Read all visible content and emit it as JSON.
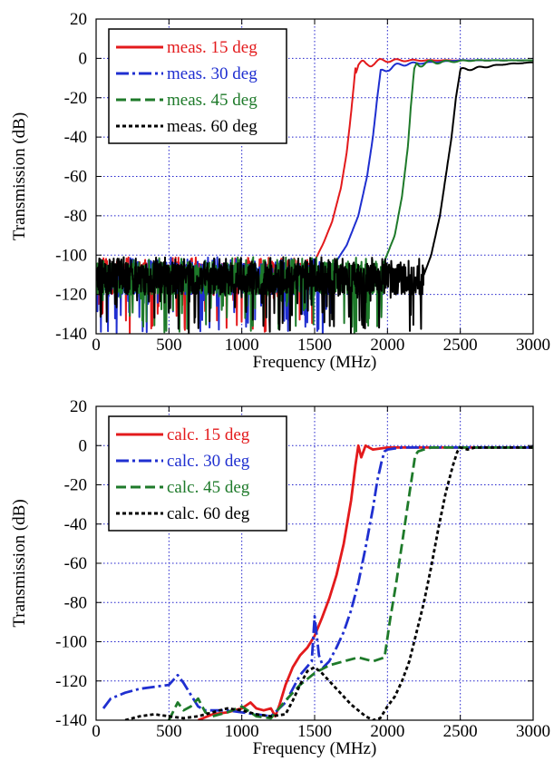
{
  "chart_data": [
    {
      "type": "line",
      "title": "",
      "xlabel": "Frequency (MHz)",
      "ylabel": "Transmission (dB)",
      "xlim": [
        0,
        3000
      ],
      "ylim": [
        -140,
        20
      ],
      "xticks": [
        "0",
        "500",
        "1000",
        "1500",
        "2000",
        "2500",
        "3000"
      ],
      "yticks": [
        "20",
        "0",
        "-20",
        "-40",
        "-60",
        "-80",
        "-100",
        "-120",
        "-140"
      ],
      "grid": true,
      "legend_position": "top-left",
      "series": [
        {
          "name": "meas. 15 deg",
          "color": "#e31a1c",
          "dash": "solid",
          "cutoff": 1780,
          "noise_end": 1500,
          "oscillation": 3,
          "x": [
            0,
            1500,
            1560,
            1620,
            1680,
            1720,
            1750,
            1780,
            1800,
            1850,
            1900,
            2000,
            2500,
            3000
          ],
          "y": [
            -112,
            -103,
            -94,
            -83,
            -66,
            -48,
            -28,
            -5,
            -2,
            -4,
            -2,
            -1,
            -1,
            -1
          ]
        },
        {
          "name": "meas. 30 deg",
          "color": "#1f2fd0",
          "dash": "dashdot",
          "cutoff": 1950,
          "noise_end": 1650,
          "oscillation": 2,
          "x": [
            0,
            1650,
            1720,
            1800,
            1860,
            1900,
            1930,
            1950,
            2000,
            2100,
            2500,
            3000
          ],
          "y": [
            -112,
            -103,
            -95,
            -80,
            -60,
            -40,
            -20,
            -8,
            -5,
            -3,
            -1,
            -1
          ]
        },
        {
          "name": "meas. 45 deg",
          "color": "#1e7a2a",
          "dash": "dashed",
          "cutoff": 2180,
          "noise_end": 1980,
          "oscillation": 2,
          "x": [
            0,
            1980,
            2050,
            2100,
            2140,
            2160,
            2180,
            2200,
            2300,
            2600,
            3000
          ],
          "y": [
            -112,
            -103,
            -90,
            -70,
            -45,
            -25,
            -8,
            -3,
            -2,
            -1,
            -1
          ]
        },
        {
          "name": "meas. 60 deg",
          "color": "#000000",
          "dash": "dotted",
          "cutoff": 2500,
          "noise_end": 2250,
          "oscillation": 1,
          "x": [
            0,
            2250,
            2300,
            2360,
            2400,
            2440,
            2470,
            2500,
            2600,
            2800,
            3000
          ],
          "y": [
            -112,
            -110,
            -100,
            -80,
            -60,
            -40,
            -20,
            -6,
            -5,
            -3,
            -2
          ]
        }
      ]
    },
    {
      "type": "line",
      "title": "",
      "xlabel": "Frequency (MHz)",
      "ylabel": "Transmission (dB)",
      "xlim": [
        0,
        3000
      ],
      "ylim": [
        -140,
        20
      ],
      "xticks": [
        "0",
        "500",
        "1000",
        "1500",
        "2000",
        "2500",
        "3000"
      ],
      "yticks": [
        "20",
        "0",
        "-20",
        "-40",
        "-60",
        "-80",
        "-100",
        "-120",
        "-140"
      ],
      "grid": true,
      "legend_position": "top-left",
      "series": [
        {
          "name": "calc. 15 deg",
          "color": "#e31a1c",
          "dash": "solid",
          "x": [
            700,
            800,
            900,
            1000,
            1060,
            1100,
            1150,
            1200,
            1230,
            1260,
            1300,
            1350,
            1400,
            1450,
            1500,
            1550,
            1600,
            1650,
            1700,
            1750,
            1780,
            1800,
            1820,
            1850,
            1900,
            2000,
            2500,
            3000
          ],
          "y": [
            -140,
            -137,
            -136,
            -134,
            -131,
            -134,
            -135,
            -134,
            -138,
            -132,
            -122,
            -113,
            -107,
            -103,
            -97,
            -88,
            -78,
            -66,
            -50,
            -28,
            -10,
            0,
            -6,
            0,
            -2,
            -1,
            -1,
            -1
          ]
        },
        {
          "name": "calc. 30 deg",
          "color": "#1f2fd0",
          "dash": "dashdot",
          "x": [
            50,
            100,
            200,
            300,
            400,
            500,
            560,
            600,
            650,
            700,
            750,
            800,
            900,
            1000,
            1100,
            1200,
            1300,
            1400,
            1480,
            1500,
            1530,
            1560,
            1600,
            1650,
            1700,
            1750,
            1800,
            1850,
            1900,
            1930,
            1960,
            1980,
            2000,
            2100,
            2500,
            3000
          ],
          "y": [
            -134,
            -129,
            -126,
            -124,
            -123,
            -122,
            -117,
            -121,
            -127,
            -133,
            -135,
            -135,
            -135,
            -136,
            -137,
            -138,
            -131,
            -117,
            -110,
            -87,
            -107,
            -113,
            -110,
            -103,
            -95,
            -84,
            -70,
            -52,
            -32,
            -18,
            -8,
            -3,
            -2,
            -1,
            -1,
            -1
          ]
        },
        {
          "name": "calc. 45 deg",
          "color": "#1e7a2a",
          "dash": "dashed",
          "x": [
            500,
            560,
            600,
            650,
            700,
            750,
            800,
            900,
            1000,
            1100,
            1200,
            1300,
            1400,
            1500,
            1600,
            1700,
            1800,
            1900,
            1980,
            2020,
            2060,
            2100,
            2150,
            2190,
            2210,
            2250,
            2300,
            2500,
            3000
          ],
          "y": [
            -140,
            -131,
            -135,
            -133,
            -129,
            -136,
            -138,
            -136,
            -133,
            -138,
            -139,
            -130,
            -122,
            -116,
            -112,
            -110,
            -108,
            -110,
            -108,
            -88,
            -70,
            -50,
            -25,
            -5,
            -3,
            -2,
            -1,
            -1,
            -1
          ]
        },
        {
          "name": "calc. 60 deg",
          "color": "#000000",
          "dash": "dotted",
          "x": [
            200,
            300,
            400,
            500,
            600,
            700,
            800,
            900,
            1000,
            1100,
            1200,
            1300,
            1350,
            1400,
            1450,
            1500,
            1550,
            1600,
            1650,
            1700,
            1750,
            1800,
            1850,
            1900,
            1950,
            2000,
            2050,
            2100,
            2150,
            2200,
            2250,
            2300,
            2350,
            2400,
            2450,
            2480,
            2500,
            2550,
            2600,
            2800,
            3000
          ],
          "y": [
            -140,
            -138,
            -137,
            -138,
            -139,
            -138,
            -136,
            -134,
            -135,
            -137,
            -138,
            -137,
            -130,
            -122,
            -115,
            -113,
            -116,
            -120,
            -124,
            -128,
            -132,
            -135,
            -138,
            -140,
            -139,
            -133,
            -128,
            -120,
            -110,
            -95,
            -80,
            -62,
            -42,
            -24,
            -10,
            -3,
            -1,
            -2,
            -1,
            -1,
            -1
          ]
        }
      ]
    }
  ]
}
